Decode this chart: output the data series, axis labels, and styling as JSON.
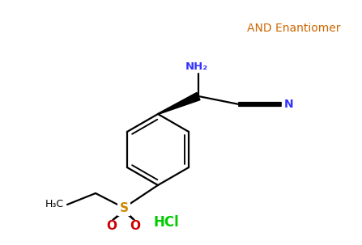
{
  "background_color": "#ffffff",
  "title_text": "AND Enantiomer",
  "title_color": "#cc6600",
  "title_fontsize": 10,
  "hcl_text": "HCl",
  "hcl_color": "#00cc00",
  "hcl_fontsize": 12,
  "nh2_text": "NH₂",
  "nh2_color": "#3333ff",
  "n_text": "N",
  "n_color": "#3333ff",
  "s_text": "S",
  "s_color": "#cc8800",
  "o_text": "O",
  "o_color": "#cc0000",
  "h3c_text": "H₃C",
  "bond_color": "#000000",
  "bond_lw": 1.6
}
